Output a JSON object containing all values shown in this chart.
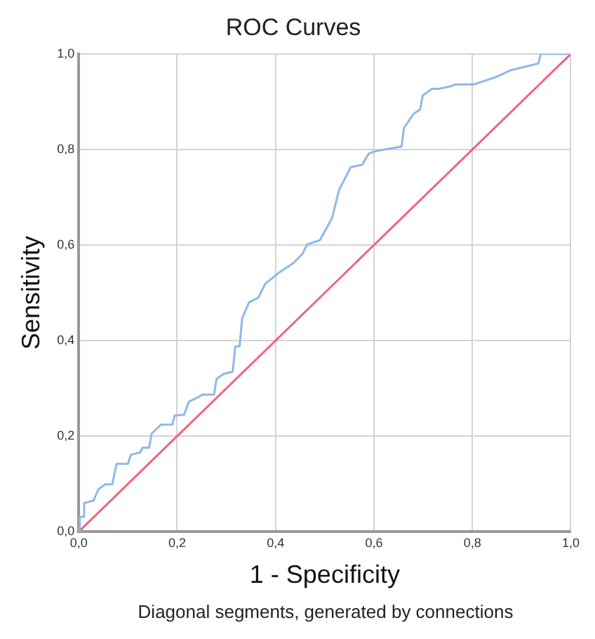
{
  "chart_data": {
    "type": "line",
    "title": "ROC Curves",
    "xlabel": "1 - Specificity",
    "ylabel": "Sensitivity",
    "annotations": [
      "Diagonal segments, generated by connections"
    ],
    "series": [
      {
        "color": "#8fb8e8",
        "x": [
          0,
          0.002,
          0.011,
          0.011,
          0.03,
          0.04,
          0.054,
          0.068,
          0.077,
          0.1,
          0.106,
          0.125,
          0.13,
          0.143,
          0.148,
          0.167,
          0.19,
          0.195,
          0.214,
          0.224,
          0.243,
          0.252,
          0.275,
          0.28,
          0.294,
          0.313,
          0.318,
          0.327,
          0.332,
          0.346,
          0.365,
          0.379,
          0.408,
          0.436,
          0.455,
          0.464,
          0.478,
          0.49,
          0.515,
          0.529,
          0.553,
          0.576,
          0.59,
          0.605,
          0.633,
          0.656,
          0.661,
          0.68,
          0.694,
          0.699,
          0.718,
          0.732,
          0.755,
          0.765,
          0.802,
          0.849,
          0.878,
          0.934,
          0.939,
          1
        ],
        "values": [
          0,
          0.031,
          0.031,
          0.06,
          0.065,
          0.089,
          0.099,
          0.099,
          0.142,
          0.142,
          0.161,
          0.166,
          0.176,
          0.176,
          0.205,
          0.224,
          0.224,
          0.243,
          0.245,
          0.272,
          0.282,
          0.287,
          0.287,
          0.32,
          0.33,
          0.335,
          0.388,
          0.388,
          0.446,
          0.48,
          0.49,
          0.519,
          0.543,
          0.562,
          0.582,
          0.601,
          0.606,
          0.61,
          0.657,
          0.715,
          0.763,
          0.768,
          0.792,
          0.797,
          0.802,
          0.806,
          0.845,
          0.874,
          0.884,
          0.913,
          0.927,
          0.927,
          0.932,
          0.936,
          0.936,
          0.952,
          0.966,
          0.98,
          1,
          1
        ]
      },
      {
        "color": "#f0647e",
        "x": [
          0,
          1
        ],
        "values": [
          0,
          1
        ]
      }
    ],
    "xlim": [
      0,
      1
    ],
    "ylim": [
      0,
      1
    ],
    "xticks": [
      {
        "value": 0,
        "label": "0,0"
      },
      {
        "value": 0.2,
        "label": "0,2"
      },
      {
        "value": 0.4,
        "label": "0,4"
      },
      {
        "value": 0.6,
        "label": "0,6"
      },
      {
        "value": 0.8,
        "label": "0,8"
      },
      {
        "value": 1,
        "label": "1,0"
      }
    ],
    "yticks": [
      {
        "value": 0,
        "label": "0,0"
      },
      {
        "value": 0.2,
        "label": "0,2"
      },
      {
        "value": 0.4,
        "label": "0,4"
      },
      {
        "value": 0.6,
        "label": "0,6"
      },
      {
        "value": 0.8,
        "label": "0,8"
      },
      {
        "value": 1,
        "label": "1,0"
      }
    ],
    "grid": true,
    "legend": false,
    "marker": "none",
    "line_style": "solid"
  }
}
